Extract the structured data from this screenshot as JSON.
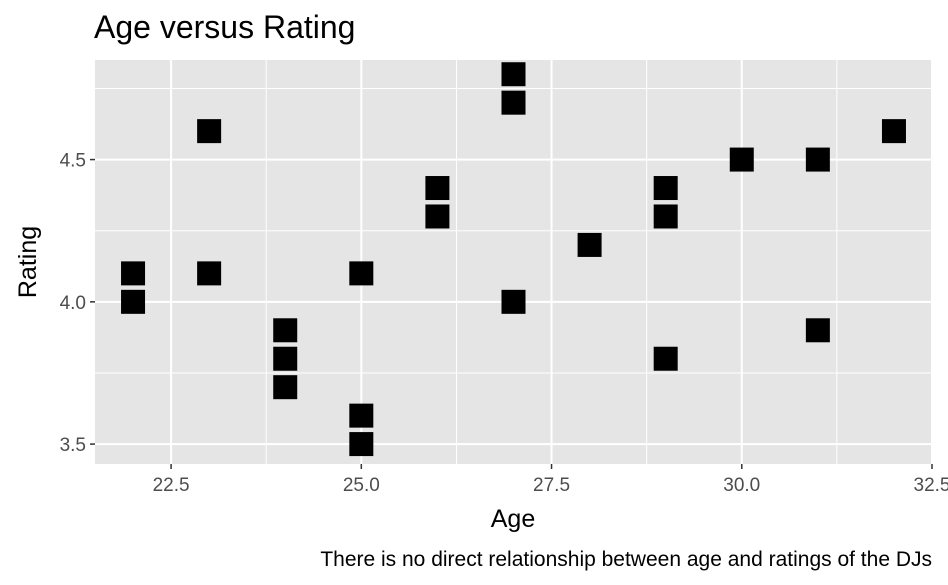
{
  "chart_data": {
    "type": "scatter",
    "title": "Age versus Rating",
    "xlabel": "Age",
    "ylabel": "Rating",
    "caption": "There is no direct relationship between age and ratings of the DJs",
    "xlim": [
      21.5,
      32.5
    ],
    "ylim": [
      3.43,
      4.85
    ],
    "x_ticks": [
      22.5,
      25.0,
      27.5,
      30.0,
      32.5
    ],
    "x_tick_labels": [
      "22.5",
      "25.0",
      "27.5",
      "30.0",
      "32.5"
    ],
    "y_ticks": [
      3.5,
      4.0,
      4.5
    ],
    "y_tick_labels": [
      "3.5",
      "4.0",
      "4.5"
    ],
    "grid": true,
    "legend": "none",
    "points": [
      {
        "x": 22,
        "y": 4.1
      },
      {
        "x": 22,
        "y": 4.0
      },
      {
        "x": 23,
        "y": 4.6
      },
      {
        "x": 23,
        "y": 4.1
      },
      {
        "x": 24,
        "y": 3.9
      },
      {
        "x": 24,
        "y": 3.8
      },
      {
        "x": 24,
        "y": 3.7
      },
      {
        "x": 25,
        "y": 4.1
      },
      {
        "x": 25,
        "y": 3.6
      },
      {
        "x": 25,
        "y": 3.5
      },
      {
        "x": 26,
        "y": 4.4
      },
      {
        "x": 26,
        "y": 4.3
      },
      {
        "x": 27,
        "y": 4.8
      },
      {
        "x": 27,
        "y": 4.7
      },
      {
        "x": 27,
        "y": 4.0
      },
      {
        "x": 28,
        "y": 4.2
      },
      {
        "x": 29,
        "y": 4.4
      },
      {
        "x": 29,
        "y": 4.3
      },
      {
        "x": 29,
        "y": 3.8
      },
      {
        "x": 30,
        "y": 4.5
      },
      {
        "x": 31,
        "y": 4.5
      },
      {
        "x": 31,
        "y": 3.9
      },
      {
        "x": 32,
        "y": 4.6
      }
    ]
  },
  "colors": {
    "panel_background": "#e5e5e5",
    "grid": "#ffffff",
    "point": "#000000",
    "tick": "#333333"
  }
}
